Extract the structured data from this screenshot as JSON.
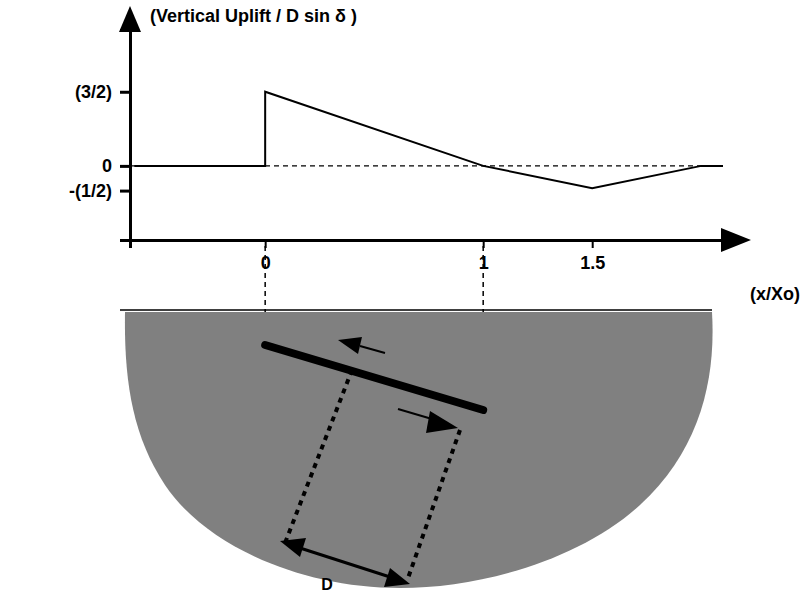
{
  "chart_data": {
    "type": "line",
    "y_label": "(Vertical Uplift / D sin δ )",
    "x_label": "(x/Xo)",
    "x": [
      -0.6,
      0,
      0,
      1,
      1.5,
      2.0,
      2.1
    ],
    "values": [
      0,
      0,
      1.5,
      0,
      -0.45,
      0,
      0
    ],
    "color": "#000000",
    "xlim": [
      -0.62,
      2.1
    ],
    "ylim": [
      -1.5,
      2.75
    ],
    "xticks": [
      0,
      1,
      1.5
    ],
    "yticks": [
      {
        "value": 1.5,
        "label": "(3/2)"
      },
      0,
      {
        "value": -0.5,
        "label": "-(1/2)"
      }
    ],
    "annotations": [
      "D"
    ]
  }
}
